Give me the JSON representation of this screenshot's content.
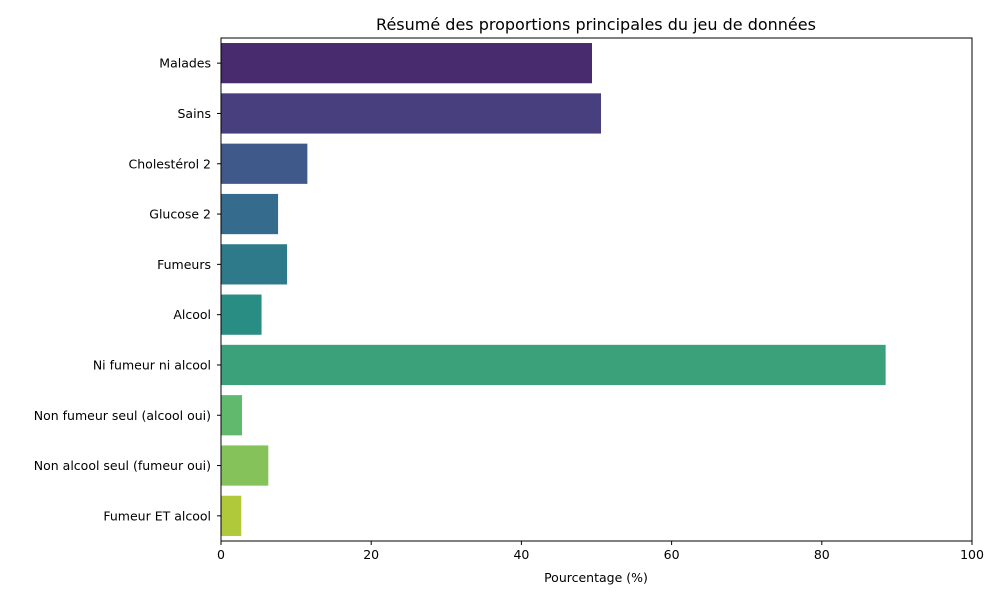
{
  "chart_data": {
    "type": "bar",
    "orientation": "horizontal",
    "title": "Résumé des proportions principales du jeu de données",
    "xlabel": "Pourcentage (%)",
    "ylabel": "",
    "xlim": [
      0,
      100
    ],
    "xticks": [
      0,
      20,
      40,
      60,
      80,
      100
    ],
    "grid": false,
    "categories": [
      "Malades",
      "Sains",
      "Cholestérol 2",
      "Glucose 2",
      "Fumeurs",
      "Alcool",
      "Ni fumeur ni alcool",
      "Non fumeur seul (alcool oui)",
      "Non alcool seul (fumeur oui)",
      "Fumeur ET alcool"
    ],
    "values": [
      49.4,
      50.6,
      11.5,
      7.6,
      8.8,
      5.4,
      88.5,
      2.8,
      6.3,
      2.7
    ],
    "colors": [
      "#472b6e",
      "#483f7e",
      "#3f5a8a",
      "#356b8c",
      "#2e7a8b",
      "#2a8d83",
      "#3aa17a",
      "#61b96e",
      "#86c25a",
      "#afc93b"
    ]
  }
}
